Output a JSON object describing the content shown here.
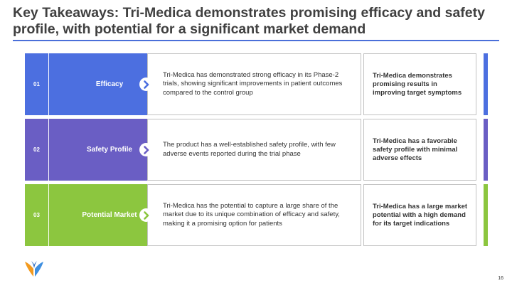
{
  "title": "Key Takeaways: Tri-Medica demonstrates promising efficacy and safety profile, with potential for a significant market demand",
  "colors": {
    "accent_rule": "#4a6fd9",
    "row1": "#4c6fe0",
    "row2": "#6a5ec4",
    "row3": "#8cc63f",
    "logo_orange": "#f39a1e",
    "logo_blue": "#3f8fe0"
  },
  "rows": [
    {
      "number": "01",
      "category": "Efficacy",
      "description": "Tri-Medica has demonstrated strong efficacy in its Phase-2 trials, showing significant improvements in patient outcomes compared to the control group",
      "takeaway": "Tri-Medica demonstrates promising results in improving target symptoms"
    },
    {
      "number": "02",
      "category": "Safety Profile",
      "description": "The product has a well-established safety profile, with few adverse events reported during the trial phase",
      "takeaway": "Tri-Medica has a favorable safety profile with minimal adverse effects"
    },
    {
      "number": "03",
      "category": "Potential Market",
      "description": "Tri-Medica has the potential to capture a large share of the market due to its unique combination of efficacy and safety, making it a promising option for patients",
      "takeaway": "Tri-Medica has a large market potential with a high demand for its target indications"
    }
  ],
  "icons": {
    "row_arrow": "chevron-right-icon",
    "logo": "company-logo-icon"
  },
  "page_number": "16"
}
